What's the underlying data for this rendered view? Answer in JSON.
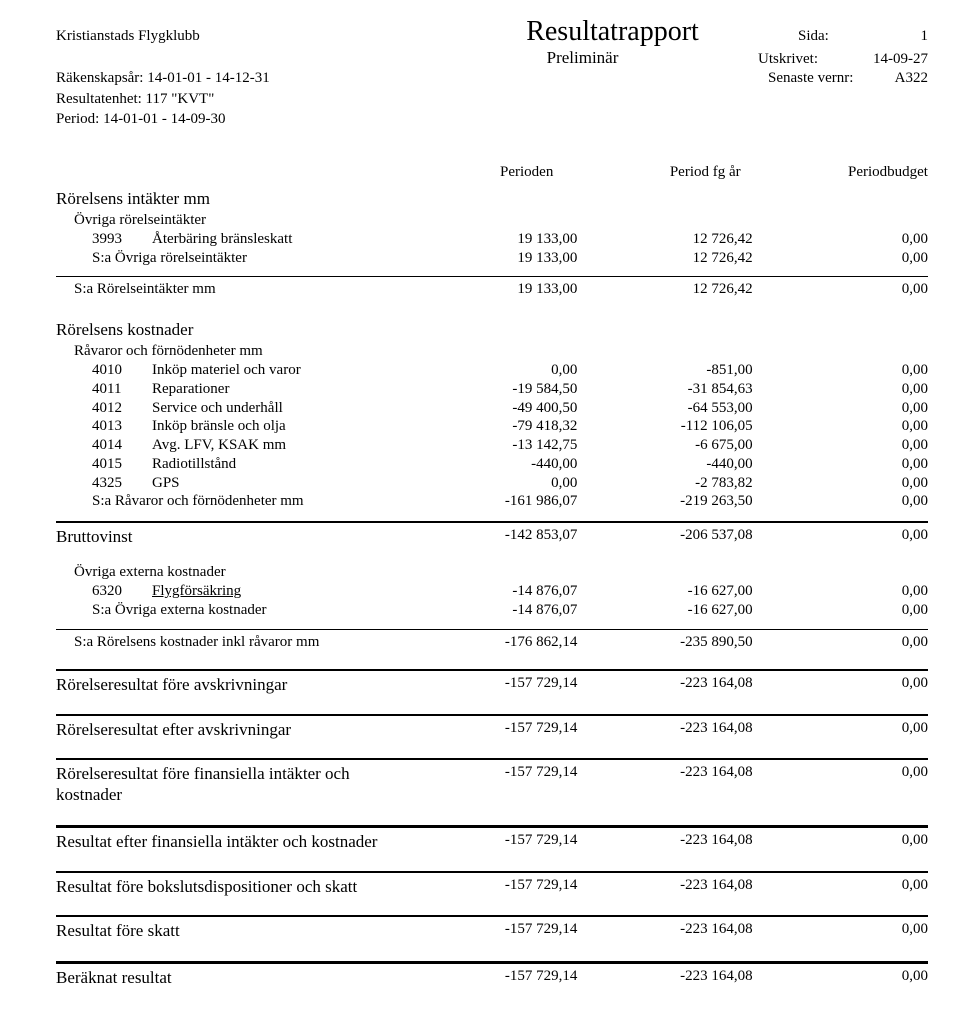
{
  "header": {
    "company": "Kristianstads Flygklubb",
    "title": "Resultatrapport",
    "subtitle": "Preliminär",
    "fiscal_label": "Räkenskapsår: 14-01-01 - 14-12-31",
    "unit": "Resultatenhet: 117 \"KVT\"",
    "period": "Period: 14-01-01 - 14-09-30",
    "page_label": "Sida:",
    "page_val": "1",
    "printed_label": "Utskrivet:",
    "printed_val": "14-09-27",
    "vernr_label": "Senaste vernr:",
    "vernr_val": "A322"
  },
  "columns": {
    "c1": "Perioden",
    "c2": "Period fg år",
    "c3": "Periodbudget"
  },
  "sec_income_title": "Rörelsens intäkter mm",
  "grp_other_income": "Övriga rörelseintäkter",
  "row_3993": {
    "code": "3993",
    "label": "Återbäring bränsleskatt",
    "v1": "19 133,00",
    "v2": "12 726,42",
    "v3": "0,00"
  },
  "sum_other_income": {
    "label": "S:a Övriga rörelseintäkter",
    "v1": "19 133,00",
    "v2": "12 726,42",
    "v3": "0,00"
  },
  "sum_income": {
    "label": "S:a Rörelseintäkter mm",
    "v1": "19 133,00",
    "v2": "12 726,42",
    "v3": "0,00"
  },
  "sec_costs_title": "Rörelsens kostnader",
  "grp_raw": "Råvaror och förnödenheter mm",
  "row_4010": {
    "code": "4010",
    "label": "Inköp materiel och varor",
    "v1": "0,00",
    "v2": "-851,00",
    "v3": "0,00"
  },
  "row_4011": {
    "code": "4011",
    "label": "Reparationer",
    "v1": "-19 584,50",
    "v2": "-31 854,63",
    "v3": "0,00"
  },
  "row_4012": {
    "code": "4012",
    "label": "Service och underhåll",
    "v1": "-49 400,50",
    "v2": "-64 553,00",
    "v3": "0,00"
  },
  "row_4013": {
    "code": "4013",
    "label": "Inköp bränsle och olja",
    "v1": "-79 418,32",
    "v2": "-112 106,05",
    "v3": "0,00"
  },
  "row_4014": {
    "code": "4014",
    "label": "Avg. LFV, KSAK mm",
    "v1": "-13 142,75",
    "v2": "-6 675,00",
    "v3": "0,00"
  },
  "row_4015": {
    "code": "4015",
    "label": "Radiotillstånd",
    "v1": "-440,00",
    "v2": "-440,00",
    "v3": "0,00"
  },
  "row_4325": {
    "code": "4325",
    "label": "GPS",
    "v1": "0,00",
    "v2": "-2 783,82",
    "v3": "0,00"
  },
  "sum_raw": {
    "label": "S:a Råvaror och förnödenheter mm",
    "v1": "-161 986,07",
    "v2": "-219 263,50",
    "v3": "0,00"
  },
  "gross": {
    "label": "Bruttovinst",
    "v1": "-142 853,07",
    "v2": "-206 537,08",
    "v3": "0,00"
  },
  "grp_ext": "Övriga externa kostnader",
  "row_6320": {
    "code": "6320",
    "label": "Flygförsäkring",
    "v1": "-14 876,07",
    "v2": "-16 627,00",
    "v3": "0,00",
    "underline": true
  },
  "sum_ext": {
    "label": "S:a Övriga externa kostnader",
    "v1": "-14 876,07",
    "v2": "-16 627,00",
    "v3": "0,00"
  },
  "sum_costs_incl": {
    "label": "S:a Rörelsens kostnader inkl råvaror mm",
    "v1": "-176 862,14",
    "v2": "-235 890,50",
    "v3": "0,00"
  },
  "res_before_depr": {
    "label": "Rörelseresultat före avskrivningar",
    "v1": "-157 729,14",
    "v2": "-223 164,08",
    "v3": "0,00"
  },
  "res_after_depr": {
    "label": "Rörelseresultat efter avskrivningar",
    "v1": "-157 729,14",
    "v2": "-223 164,08",
    "v3": "0,00"
  },
  "res_before_fin": {
    "label": "Rörelseresultat före finansiella intäkter och kostnader",
    "v1": "-157 729,14",
    "v2": "-223 164,08",
    "v3": "0,00"
  },
  "res_after_fin": {
    "label": "Resultat efter finansiella intäkter och kostnader",
    "v1": "-157 729,14",
    "v2": "-223 164,08",
    "v3": "0,00"
  },
  "res_before_tax": {
    "label": "Resultat före bokslutsdispositioner och skatt",
    "v1": "-157 729,14",
    "v2": "-223 164,08",
    "v3": "0,00"
  },
  "res_pretax": {
    "label": "Resultat före skatt",
    "v1": "-157 729,14",
    "v2": "-223 164,08",
    "v3": "0,00"
  },
  "res_calc": {
    "label": "Beräknat resultat",
    "v1": "-157 729,14",
    "v2": "-223 164,08",
    "v3": "0,00"
  }
}
